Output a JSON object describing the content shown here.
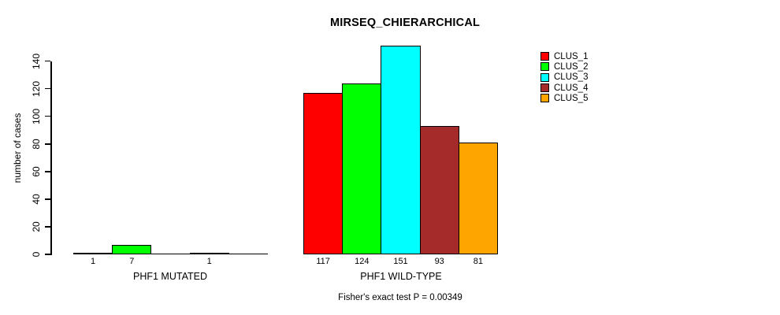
{
  "figure": {
    "background": "#FFFFFF",
    "axis_color": "#000000"
  },
  "chart_data": {
    "type": "bar",
    "title": "MIRSEQ_CHIERARCHICAL",
    "ylabel": "number of cases",
    "xlabel": "",
    "ylim": [
      0,
      155
    ],
    "yticks": [
      0,
      20,
      40,
      60,
      80,
      100,
      120,
      140
    ],
    "grid": false,
    "legend_position": "top-right",
    "groups": [
      "PHF1 MUTATED",
      "PHF1 WILD-TYPE"
    ],
    "series": [
      {
        "name": "CLUS_1",
        "color": "#FF0000",
        "values": [
          1,
          117
        ]
      },
      {
        "name": "CLUS_2",
        "color": "#00FF00",
        "values": [
          7,
          124
        ]
      },
      {
        "name": "CLUS_3",
        "color": "#00FFFF",
        "values": [
          0,
          151
        ]
      },
      {
        "name": "CLUS_4",
        "color": "#A52A2A",
        "values": [
          1,
          93
        ]
      },
      {
        "name": "CLUS_5",
        "color": "#FFA500",
        "values": [
          0,
          81
        ]
      }
    ],
    "bar_labels": [
      [
        "1",
        "7",
        "",
        "1",
        ""
      ],
      [
        "117",
        "124",
        "151",
        "93",
        "81"
      ]
    ],
    "annotation": "Fisher's exact test P = 0.00349"
  }
}
